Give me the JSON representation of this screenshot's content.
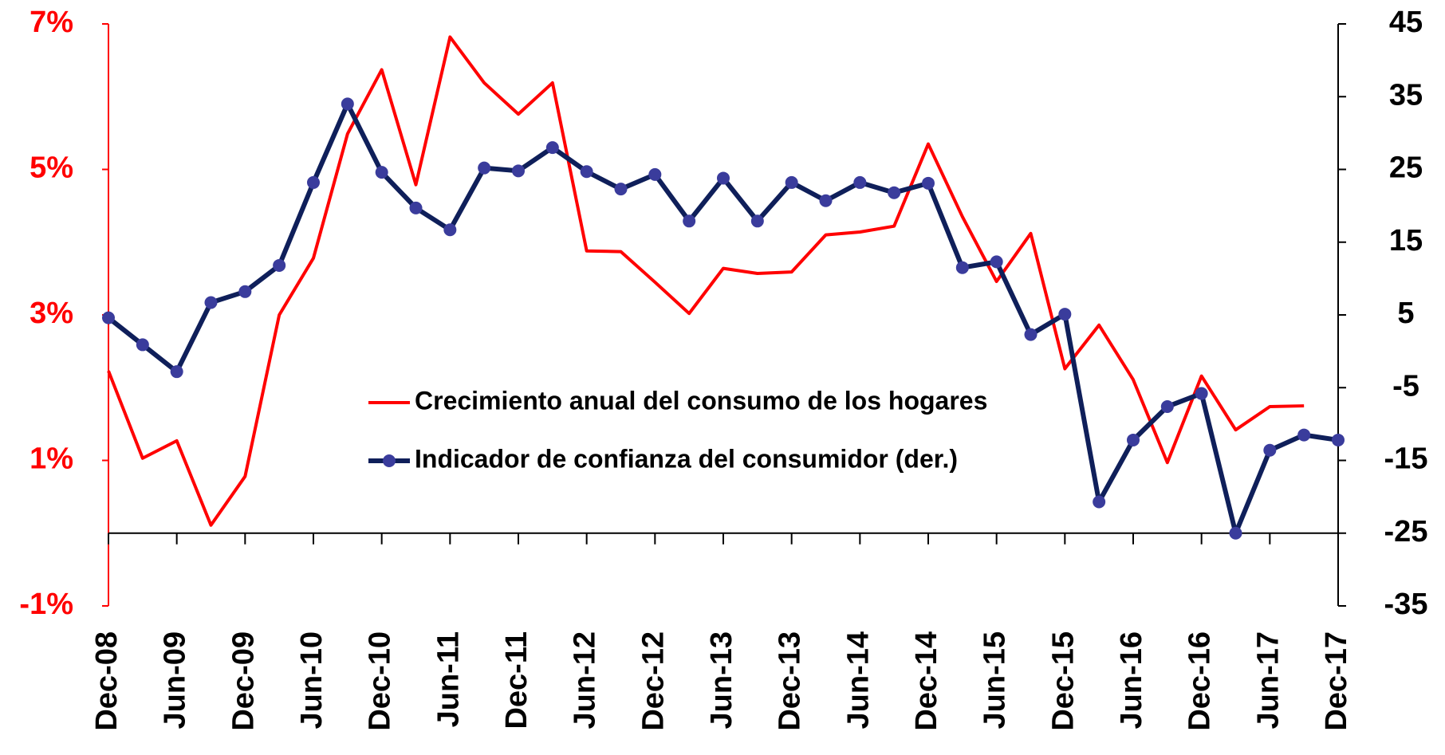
{
  "chart_data": {
    "type": "line",
    "categories": [
      "Dec-08",
      null,
      "Jun-09",
      null,
      "Dec-09",
      null,
      "Jun-10",
      null,
      "Dec-10",
      null,
      "Jun-11",
      null,
      "Dec-11",
      null,
      "Jun-12",
      null,
      "Dec-12",
      null,
      "Jun-13",
      null,
      "Dec-13",
      null,
      "Jun-14",
      null,
      "Dec-14",
      null,
      "Jun-15",
      null,
      "Dec-15",
      null,
      "Jun-16",
      null,
      "Dec-16",
      null,
      "Jun-17",
      null,
      "Dec-17"
    ],
    "series": [
      {
        "name": "Crecimiento anual del consumo de los hogares",
        "color": "#ff0000",
        "axis": "y",
        "values": [
          2.23,
          1.03,
          1.27,
          0.11,
          0.78,
          3.0,
          3.78,
          5.49,
          6.37,
          4.79,
          6.82,
          6.19,
          5.76,
          6.19,
          3.88,
          3.87,
          3.45,
          3.02,
          3.64,
          3.57,
          3.59,
          4.1,
          4.14,
          4.22,
          5.35,
          4.35,
          3.46,
          4.12,
          2.26,
          2.86,
          2.11,
          0.97,
          2.16,
          1.42,
          1.74,
          1.75,
          null
        ]
      },
      {
        "name": "Indicador de confianza del consumidor (der.)",
        "color": "#0f1f5a",
        "marker_color": "#3a3c9c",
        "axis": "y2",
        "values": [
          4.6,
          0.9,
          -2.8,
          6.7,
          8.2,
          11.8,
          23.2,
          34.0,
          24.6,
          19.7,
          16.7,
          25.2,
          24.8,
          28.0,
          24.7,
          22.3,
          24.3,
          17.9,
          23.8,
          17.9,
          23.2,
          20.7,
          23.2,
          21.8,
          23.1,
          11.5,
          12.3,
          2.3,
          5.1,
          -20.7,
          -12.2,
          -7.6,
          -5.8,
          -25.0,
          -13.6,
          -11.5,
          -12.2
        ]
      }
    ],
    "ylim": [
      -1,
      7
    ],
    "yticks": [
      {
        "value": -1,
        "label": "-1%"
      },
      {
        "value": 1,
        "label": "1%"
      },
      {
        "value": 3,
        "label": "3%"
      },
      {
        "value": 5,
        "label": "5%"
      },
      {
        "value": 7,
        "label": "7%"
      }
    ],
    "y2lim": [
      -35,
      45
    ],
    "y2ticks": [
      -35,
      -25,
      -15,
      -5,
      5,
      15,
      25,
      35,
      45
    ],
    "ytick_color": "#ff0000",
    "legend": "center"
  }
}
